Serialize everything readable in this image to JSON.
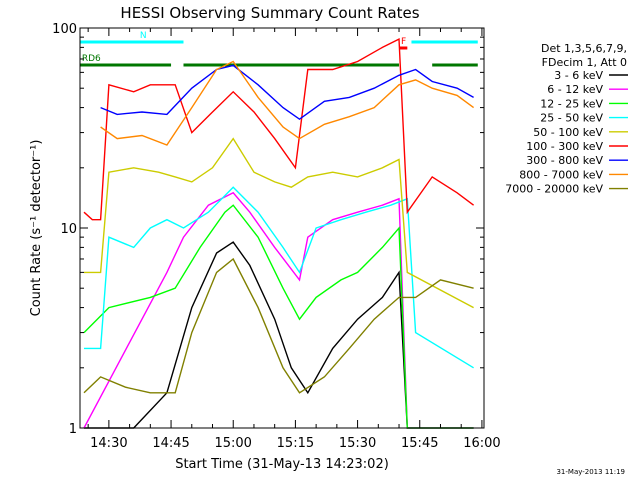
{
  "chart_data": {
    "type": "line",
    "title": "HESSI Observing Summary Count Rates",
    "xlabel": "Start Time (31-May-13 14:23:02)",
    "ylabel": "Count Rate (s⁻¹ detector⁻¹)",
    "yscale": "log",
    "ylim": [
      1,
      100
    ],
    "xlim": [
      "14:23:02",
      "16:00:30"
    ],
    "x_ticks": [
      "14:30",
      "14:45",
      "15:00",
      "15:15",
      "15:30",
      "15:45",
      "16:00"
    ],
    "y_ticks": [
      "1",
      "10",
      "100"
    ],
    "grid": false,
    "legend_placement": "right",
    "legend_header": [
      "Det 1,3,5,6,7,9,",
      "FDecim 1, Att 0"
    ],
    "flags": [
      {
        "label": "N",
        "color": "#00ffff",
        "segments": [
          [
            "14:23",
            "14:48"
          ],
          [
            "15:43",
            "15:59"
          ]
        ]
      },
      {
        "label": "RD6",
        "color": "#007700",
        "segments": [
          [
            "14:23",
            "14:43"
          ],
          [
            "14:30",
            "14:45"
          ],
          [
            "14:48",
            "15:40"
          ],
          [
            "15:48",
            "15:59"
          ]
        ]
      },
      {
        "label": "F",
        "color": "#ff0000",
        "segments": [
          [
            "15:40",
            "15:42"
          ]
        ]
      }
    ],
    "footer_timestamp": "31-May-2013 11:19",
    "series": [
      {
        "name": "3 - 6 keV",
        "color": "#000000",
        "points": [
          [
            "14:24",
            1.0
          ],
          [
            "14:36",
            1.0
          ],
          [
            "14:44",
            1.5
          ],
          [
            "14:50",
            4.0
          ],
          [
            "14:56",
            7.5
          ],
          [
            "15:00",
            8.5
          ],
          [
            "15:04",
            6.5
          ],
          [
            "15:10",
            3.5
          ],
          [
            "15:14",
            2.0
          ],
          [
            "15:18",
            1.5
          ],
          [
            "15:24",
            2.5
          ],
          [
            "15:30",
            3.5
          ],
          [
            "15:36",
            4.5
          ],
          [
            "15:40",
            6.0
          ],
          [
            "15:42",
            1.0
          ],
          [
            "15:58",
            1.0
          ]
        ]
      },
      {
        "name": "6 - 12 keV",
        "color": "#ff00ff",
        "points": [
          [
            "14:24",
            1.0
          ],
          [
            "14:44",
            6.0
          ],
          [
            "14:48",
            9.0
          ],
          [
            "14:54",
            13.0
          ],
          [
            "15:00",
            15.0
          ],
          [
            "15:04",
            12.0
          ],
          [
            "15:10",
            8.0
          ],
          [
            "15:16",
            5.5
          ],
          [
            "15:18",
            9.0
          ],
          [
            "15:24",
            11.0
          ],
          [
            "15:30",
            12.0
          ],
          [
            "15:36",
            13.0
          ],
          [
            "15:40",
            14.0
          ],
          [
            "15:42",
            1.0
          ],
          [
            "15:58",
            1.0
          ]
        ]
      },
      {
        "name": "12 - 25 keV",
        "color": "#00ff00",
        "points": [
          [
            "14:24",
            3.0
          ],
          [
            "14:30",
            4.0
          ],
          [
            "14:40",
            4.5
          ],
          [
            "14:46",
            5.0
          ],
          [
            "14:52",
            8.0
          ],
          [
            "14:58",
            12.0
          ],
          [
            "15:00",
            13.0
          ],
          [
            "15:06",
            9.0
          ],
          [
            "15:12",
            5.0
          ],
          [
            "15:16",
            3.5
          ],
          [
            "15:20",
            4.5
          ],
          [
            "15:26",
            5.5
          ],
          [
            "15:30",
            6.0
          ],
          [
            "15:36",
            8.0
          ],
          [
            "15:40",
            10.0
          ],
          [
            "15:42",
            1.0
          ],
          [
            "15:58",
            1.0
          ]
        ]
      },
      {
        "name": "25 - 50 keV",
        "color": "#00ffff",
        "points": [
          [
            "14:24",
            2.5
          ],
          [
            "14:28",
            2.5
          ],
          [
            "14:30",
            9.0
          ],
          [
            "14:36",
            8.0
          ],
          [
            "14:40",
            10.0
          ],
          [
            "14:44",
            11.0
          ],
          [
            "14:48",
            10.0
          ],
          [
            "14:54",
            12.0
          ],
          [
            "15:00",
            16.0
          ],
          [
            "15:06",
            12.0
          ],
          [
            "15:12",
            8.0
          ],
          [
            "15:16",
            6.0
          ],
          [
            "15:20",
            10.0
          ],
          [
            "15:26",
            11.0
          ],
          [
            "15:32",
            12.0
          ],
          [
            "15:38",
            13.0
          ],
          [
            "15:42",
            14.0
          ],
          [
            "15:44",
            3.0
          ],
          [
            "15:58",
            2.0
          ]
        ]
      },
      {
        "name": "50 - 100 keV",
        "color": "#cccc00",
        "points": [
          [
            "14:24",
            6.0
          ],
          [
            "14:28",
            6.0
          ],
          [
            "14:30",
            19.0
          ],
          [
            "14:36",
            20.0
          ],
          [
            "14:42",
            19.0
          ],
          [
            "14:46",
            18.0
          ],
          [
            "14:50",
            17.0
          ],
          [
            "14:55",
            20.0
          ],
          [
            "15:00",
            28.0
          ],
          [
            "15:05",
            19.0
          ],
          [
            "15:10",
            17.0
          ],
          [
            "15:14",
            16.0
          ],
          [
            "15:18",
            18.0
          ],
          [
            "15:24",
            19.0
          ],
          [
            "15:30",
            18.0
          ],
          [
            "15:36",
            20.0
          ],
          [
            "15:40",
            22.0
          ],
          [
            "15:42",
            6.0
          ],
          [
            "15:58",
            4.0
          ]
        ]
      },
      {
        "name": "100 - 300 keV",
        "color": "#ff0000",
        "points": [
          [
            "14:24",
            12.0
          ],
          [
            "14:26",
            11.0
          ],
          [
            "14:28",
            11.0
          ],
          [
            "14:30",
            52.0
          ],
          [
            "14:36",
            48.0
          ],
          [
            "14:40",
            52.0
          ],
          [
            "14:46",
            52.0
          ],
          [
            "14:50",
            30.0
          ],
          [
            "14:55",
            38.0
          ],
          [
            "15:00",
            48.0
          ],
          [
            "15:05",
            38.0
          ],
          [
            "15:10",
            28.0
          ],
          [
            "15:15",
            20.0
          ],
          [
            "15:18",
            62.0
          ],
          [
            "15:24",
            62.0
          ],
          [
            "15:30",
            68.0
          ],
          [
            "15:36",
            80.0
          ],
          [
            "15:40",
            88.0
          ],
          [
            "15:42",
            12.0
          ],
          [
            "15:48",
            18.0
          ],
          [
            "15:54",
            15.0
          ],
          [
            "15:58",
            13.0
          ]
        ]
      },
      {
        "name": "300 - 800 keV",
        "color": "#0000ff",
        "points": [
          [
            "14:28",
            40.0
          ],
          [
            "14:32",
            37.0
          ],
          [
            "14:38",
            38.0
          ],
          [
            "14:44",
            37.0
          ],
          [
            "14:50",
            50.0
          ],
          [
            "14:56",
            62.0
          ],
          [
            "15:00",
            65.0
          ],
          [
            "15:06",
            52.0
          ],
          [
            "15:12",
            40.0
          ],
          [
            "15:16",
            35.0
          ],
          [
            "15:22",
            43.0
          ],
          [
            "15:28",
            45.0
          ],
          [
            "15:34",
            50.0
          ],
          [
            "15:40",
            58.0
          ],
          [
            "15:44",
            62.0
          ],
          [
            "15:48",
            54.0
          ],
          [
            "15:54",
            50.0
          ],
          [
            "15:58",
            45.0
          ]
        ]
      },
      {
        "name": "800 - 7000 keV",
        "color": "#ff8800",
        "points": [
          [
            "14:28",
            32.0
          ],
          [
            "14:32",
            28.0
          ],
          [
            "14:38",
            29.0
          ],
          [
            "14:44",
            26.0
          ],
          [
            "14:50",
            40.0
          ],
          [
            "14:56",
            62.0
          ],
          [
            "15:00",
            68.0
          ],
          [
            "15:06",
            45.0
          ],
          [
            "15:12",
            32.0
          ],
          [
            "15:16",
            28.0
          ],
          [
            "15:22",
            33.0
          ],
          [
            "15:28",
            36.0
          ],
          [
            "15:34",
            40.0
          ],
          [
            "15:40",
            52.0
          ],
          [
            "15:44",
            55.0
          ],
          [
            "15:48",
            50.0
          ],
          [
            "15:54",
            46.0
          ],
          [
            "15:58",
            40.0
          ]
        ]
      },
      {
        "name": "7000 - 20000 keV",
        "color": "#808000",
        "points": [
          [
            "14:24",
            1.5
          ],
          [
            "14:28",
            1.8
          ],
          [
            "14:34",
            1.6
          ],
          [
            "14:40",
            1.5
          ],
          [
            "14:46",
            1.5
          ],
          [
            "14:50",
            3.0
          ],
          [
            "14:56",
            6.0
          ],
          [
            "15:00",
            7.0
          ],
          [
            "15:06",
            4.0
          ],
          [
            "15:12",
            2.0
          ],
          [
            "15:16",
            1.5
          ],
          [
            "15:22",
            1.8
          ],
          [
            "15:28",
            2.5
          ],
          [
            "15:34",
            3.5
          ],
          [
            "15:40",
            4.5
          ],
          [
            "15:44",
            4.5
          ],
          [
            "15:50",
            5.5
          ],
          [
            "15:58",
            5.0
          ]
        ]
      }
    ]
  }
}
